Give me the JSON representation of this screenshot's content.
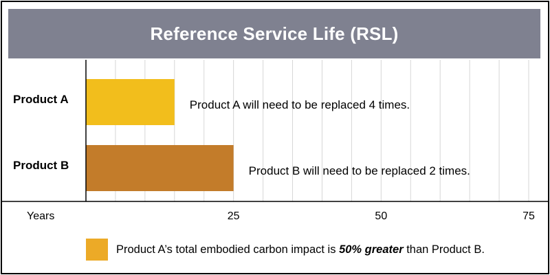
{
  "chart_data": {
    "type": "bar",
    "orientation": "horizontal",
    "title": "Reference Service Life (RSL)",
    "xlabel": "Years",
    "xlim": [
      0,
      75
    ],
    "xticks": [
      25,
      50,
      75
    ],
    "grid": true,
    "categories": [
      "Product A",
      "Product B"
    ],
    "values": [
      15,
      25
    ],
    "bar_labels": [
      "Product A will need to be replaced 4 times.",
      "Product B will need to be replaced 2 times."
    ],
    "colors": [
      "#F2BE1C",
      "#C37C2A"
    ]
  },
  "footnote": {
    "before": "Product A’s total embodied carbon impact is ",
    "emphasis": "50% greater",
    "after": " than Product B.",
    "swatch_color": "#ECAA27"
  },
  "colors": {
    "title_bar": "#7F8190",
    "grid": "#D6D6D6",
    "axis": "#000000"
  }
}
